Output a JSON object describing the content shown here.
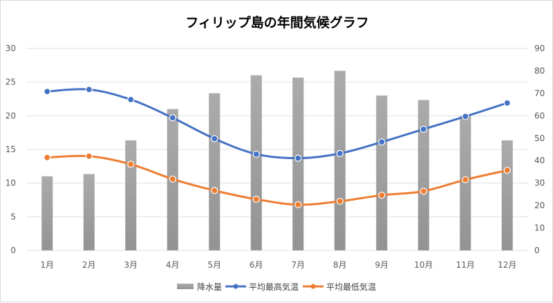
{
  "chart_data": {
    "type": "bar+line",
    "title": "フィリップ島の年間気候グラフ",
    "categories": [
      "1月",
      "2月",
      "3月",
      "4月",
      "5月",
      "6月",
      "7月",
      "8月",
      "9月",
      "10月",
      "11月",
      "12月"
    ],
    "left_axis": {
      "min": 0,
      "max": 30,
      "ticks": [
        0,
        5,
        10,
        15,
        20,
        25,
        30
      ]
    },
    "right_axis": {
      "min": 0,
      "max": 90,
      "ticks": [
        0,
        10,
        20,
        30,
        40,
        50,
        60,
        70,
        80,
        90
      ]
    },
    "grid": true,
    "legend_position": "bottom",
    "series": [
      {
        "name": "降水量",
        "type": "bar",
        "axis": "right",
        "color": "#a5a5a5",
        "values": [
          33,
          34,
          49,
          63,
          70,
          78,
          77,
          80,
          69,
          67,
          60,
          49
        ]
      },
      {
        "name": "平均最高気温",
        "type": "line",
        "axis": "left",
        "color": "#4472c4",
        "values": [
          23.6,
          23.9,
          22.4,
          19.7,
          16.6,
          14.3,
          13.7,
          14.4,
          16.1,
          18.0,
          19.9,
          21.9
        ]
      },
      {
        "name": "平均最低気温",
        "type": "line",
        "axis": "left",
        "color": "#ed7d31",
        "values": [
          13.8,
          14.0,
          12.8,
          10.6,
          8.9,
          7.6,
          6.8,
          7.3,
          8.2,
          8.8,
          10.5,
          11.9
        ]
      }
    ]
  }
}
